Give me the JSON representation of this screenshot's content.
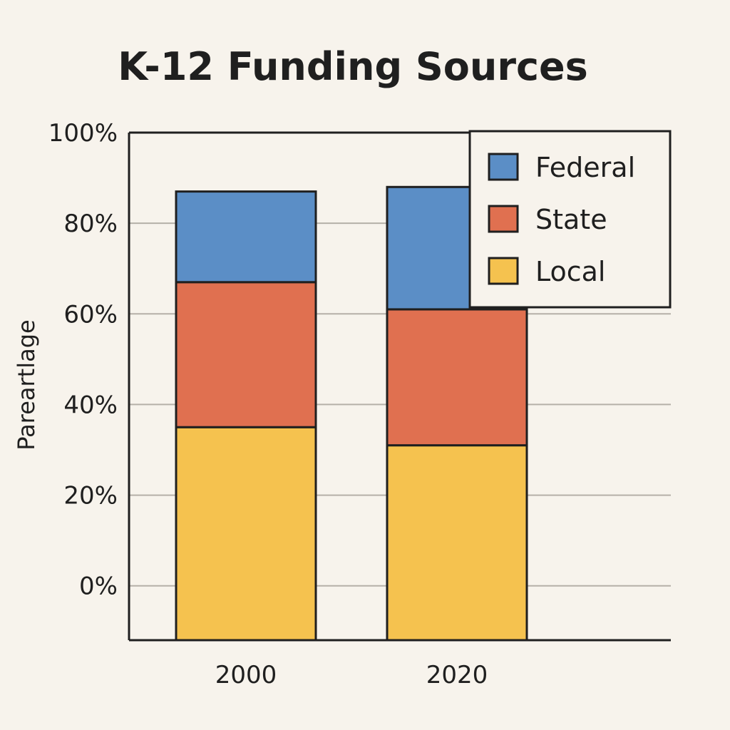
{
  "chart_data": {
    "type": "bar",
    "stacked": true,
    "title": "K-12 Funding Sources",
    "xlabel": "",
    "ylabel": "Pareartlage",
    "ylim": [
      -12,
      100
    ],
    "y_ticks": [
      0,
      20,
      40,
      60,
      80,
      100
    ],
    "y_tick_labels": [
      "0%",
      "20%",
      "40%",
      "60%",
      "80%",
      "100%"
    ],
    "grid": true,
    "legend_position": "top-right",
    "categories": [
      "2000",
      "2020"
    ],
    "series": [
      {
        "name": "Local",
        "color": "#f5c24f",
        "values": [
          47,
          43
        ]
      },
      {
        "name": "State",
        "color": "#e07050",
        "values": [
          32,
          30
        ]
      },
      {
        "name": "Federal",
        "color": "#5b8ec6",
        "values": [
          20,
          27
        ]
      }
    ],
    "legend_order": [
      "Federal",
      "State",
      "Local"
    ]
  }
}
